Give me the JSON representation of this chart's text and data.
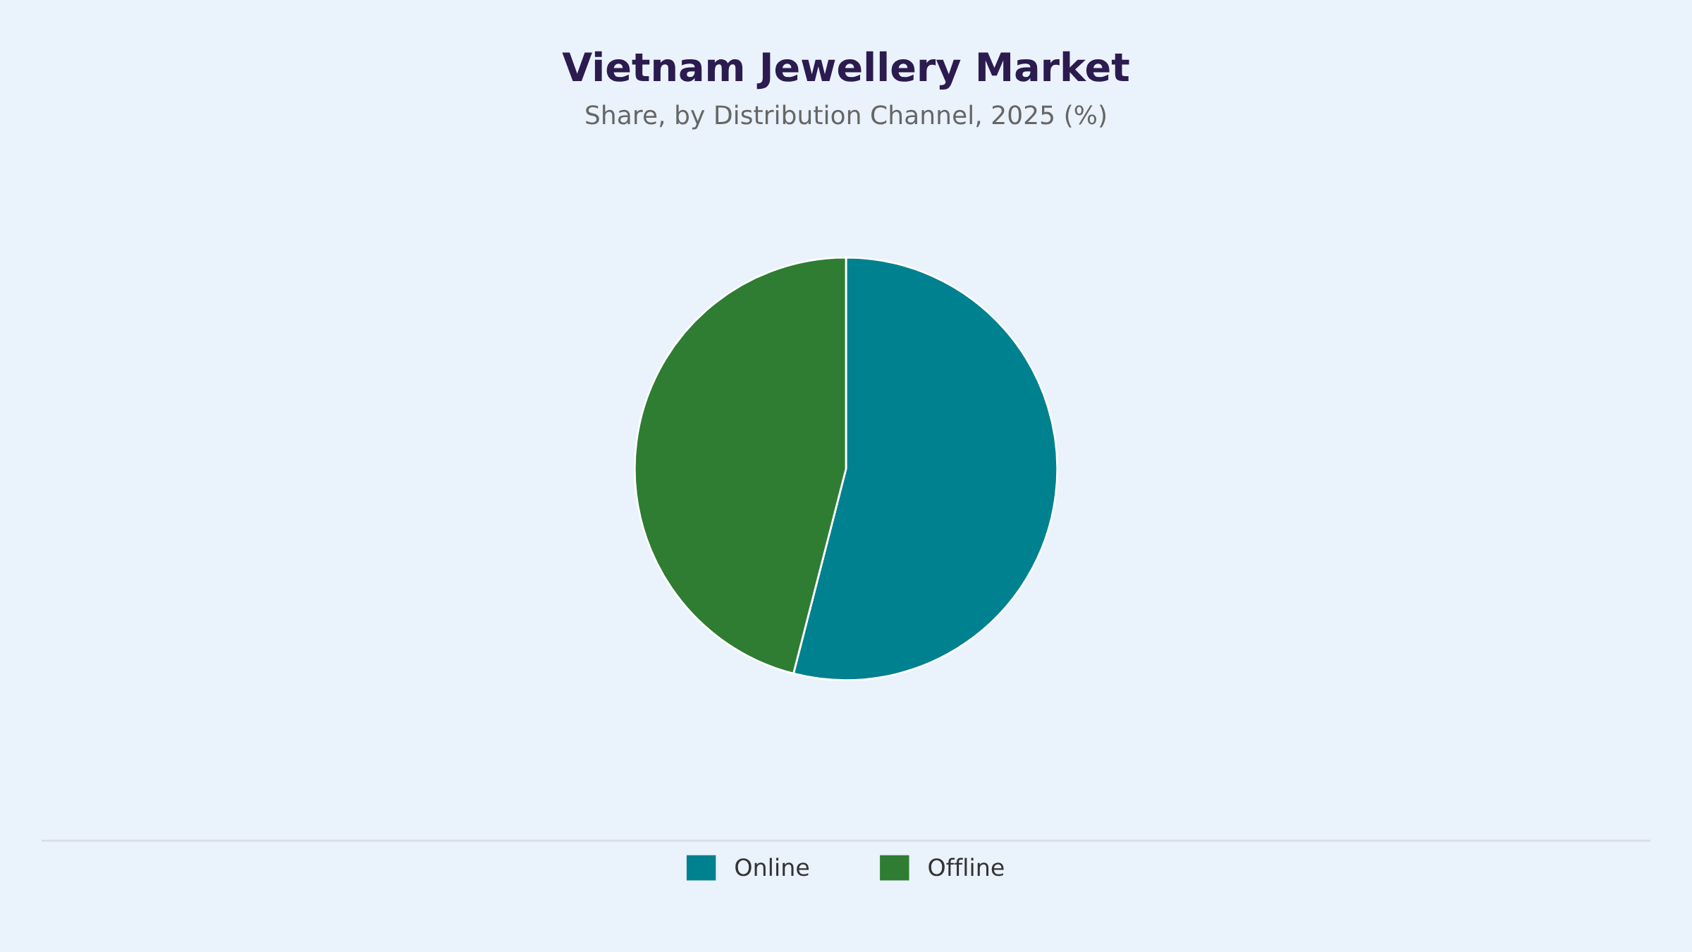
{
  "chart_data": {
    "type": "pie",
    "title": "Vietnam Jewellery Market",
    "subtitle": "Share, by Distribution Channel, 2025 (%)",
    "categories": [
      "Online",
      "Offline"
    ],
    "values": [
      54,
      46
    ],
    "colors": [
      "#00818f",
      "#2e7d32"
    ],
    "legend": "bottom"
  }
}
